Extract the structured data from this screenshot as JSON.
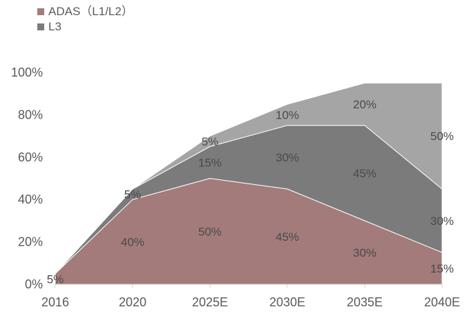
{
  "chart_data": {
    "type": "area",
    "stacked": true,
    "categories": [
      "2016",
      "2020",
      "2025E",
      "2030E",
      "2035E",
      "2040E"
    ],
    "ylim": [
      0,
      100
    ],
    "y_ticks": [
      "0%",
      "20%",
      "40%",
      "60%",
      "80%",
      "100%"
    ],
    "y_tick_values": [
      0,
      20,
      40,
      60,
      80,
      100
    ],
    "legend_position": "top-left",
    "grid": false,
    "series": [
      {
        "name": "ADAS（L1/L2）",
        "values": [
          5,
          40,
          50,
          45,
          30,
          15
        ],
        "labels": [
          "5%",
          "40%",
          "50%",
          "45%",
          "30%",
          "15%"
        ],
        "color": "#a37b7b"
      },
      {
        "name": "L3",
        "values": [
          0,
          5,
          15,
          30,
          45,
          30
        ],
        "labels": [
          "",
          "5%",
          "15%",
          "30%",
          "45%",
          "30%"
        ],
        "color": "#7b7b7b"
      },
      {
        "name": "",
        "values": [
          0,
          0,
          5,
          10,
          20,
          50
        ],
        "labels": [
          "",
          "",
          "5%",
          "10%",
          "20%",
          "50%"
        ],
        "color": "#a5a5a5"
      }
    ]
  }
}
